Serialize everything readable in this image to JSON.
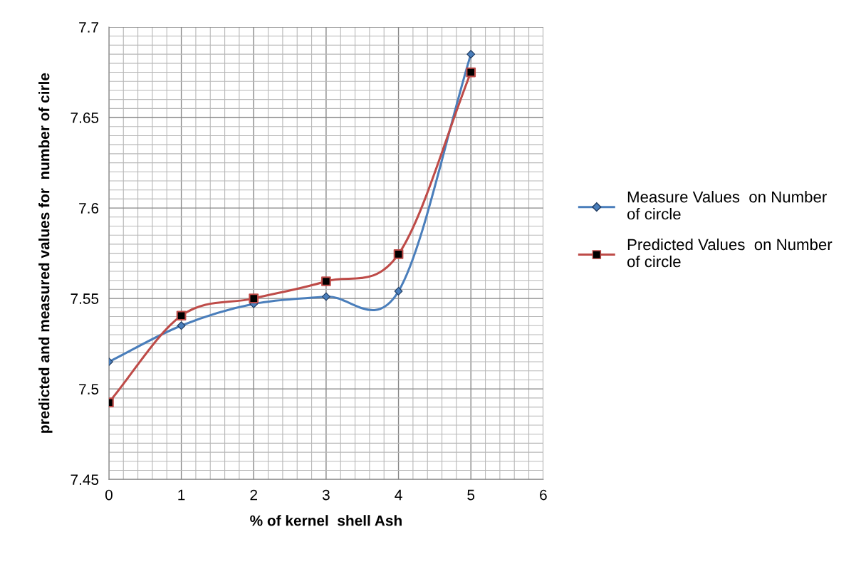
{
  "chart_data": {
    "type": "line",
    "xlabel": "% of kernel  shell Ash",
    "ylabel": "predicted and measured values for  number of cirle",
    "x": [
      0,
      1,
      2,
      3,
      4,
      5
    ],
    "series": [
      {
        "name": "Measure Values  on Number of circle",
        "color": "#4a7ebb",
        "marker": "diamond",
        "values": [
          7.515,
          7.535,
          7.547,
          7.551,
          7.554,
          7.685
        ]
      },
      {
        "name": "Predicted Values  on Number of circle",
        "color": "#be4b48",
        "marker": "square",
        "values": [
          7.4925,
          7.5405,
          7.55,
          7.5595,
          7.5745,
          7.675
        ]
      }
    ],
    "xlim": [
      0,
      6
    ],
    "xticks": [
      0,
      1,
      2,
      3,
      4,
      5,
      6
    ],
    "ylim": [
      7.45,
      7.7
    ],
    "yticks": [
      7.45,
      7.5,
      7.55,
      7.6,
      7.65,
      7.7
    ],
    "grid": true,
    "legend": "right",
    "line_style": "solid"
  }
}
